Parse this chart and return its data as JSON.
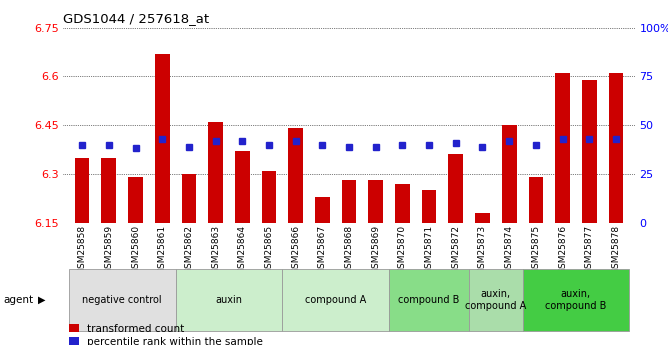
{
  "title": "GDS1044 / 257618_at",
  "samples": [
    "GSM25858",
    "GSM25859",
    "GSM25860",
    "GSM25861",
    "GSM25862",
    "GSM25863",
    "GSM25864",
    "GSM25865",
    "GSM25866",
    "GSM25867",
    "GSM25868",
    "GSM25869",
    "GSM25870",
    "GSM25871",
    "GSM25872",
    "GSM25873",
    "GSM25874",
    "GSM25875",
    "GSM25876",
    "GSM25877",
    "GSM25878"
  ],
  "bar_values": [
    6.35,
    6.35,
    6.29,
    6.67,
    6.3,
    6.46,
    6.37,
    6.31,
    6.44,
    6.23,
    6.28,
    6.28,
    6.27,
    6.25,
    6.36,
    6.18,
    6.45,
    6.29,
    6.61,
    6.59,
    6.61
  ],
  "percentile_values": [
    40,
    40,
    38,
    43,
    39,
    42,
    42,
    40,
    42,
    40,
    39,
    39,
    40,
    40,
    41,
    39,
    42,
    40,
    43,
    43,
    43
  ],
  "bar_color": "#cc0000",
  "dot_color": "#2222cc",
  "ylim": [
    6.15,
    6.75
  ],
  "yticks": [
    6.15,
    6.3,
    6.45,
    6.6,
    6.75
  ],
  "right_ylim": [
    0,
    100
  ],
  "right_yticks": [
    0,
    25,
    50,
    75,
    100
  ],
  "right_yticklabels": [
    "0",
    "25",
    "50",
    "75",
    "100%"
  ],
  "groups": [
    {
      "label": "negative control",
      "start": 0,
      "end": 3,
      "color": "#e0e0e0"
    },
    {
      "label": "auxin",
      "start": 4,
      "end": 7,
      "color": "#cceecc"
    },
    {
      "label": "compound A",
      "start": 8,
      "end": 11,
      "color": "#cceecc"
    },
    {
      "label": "compound B",
      "start": 12,
      "end": 14,
      "color": "#88dd88"
    },
    {
      "label": "auxin,\ncompound A",
      "start": 15,
      "end": 16,
      "color": "#aaddaa"
    },
    {
      "label": "auxin,\ncompound B",
      "start": 17,
      "end": 20,
      "color": "#44cc44"
    }
  ],
  "legend_red": "transformed count",
  "legend_blue": "percentile rank within the sample",
  "bar_width": 0.55
}
